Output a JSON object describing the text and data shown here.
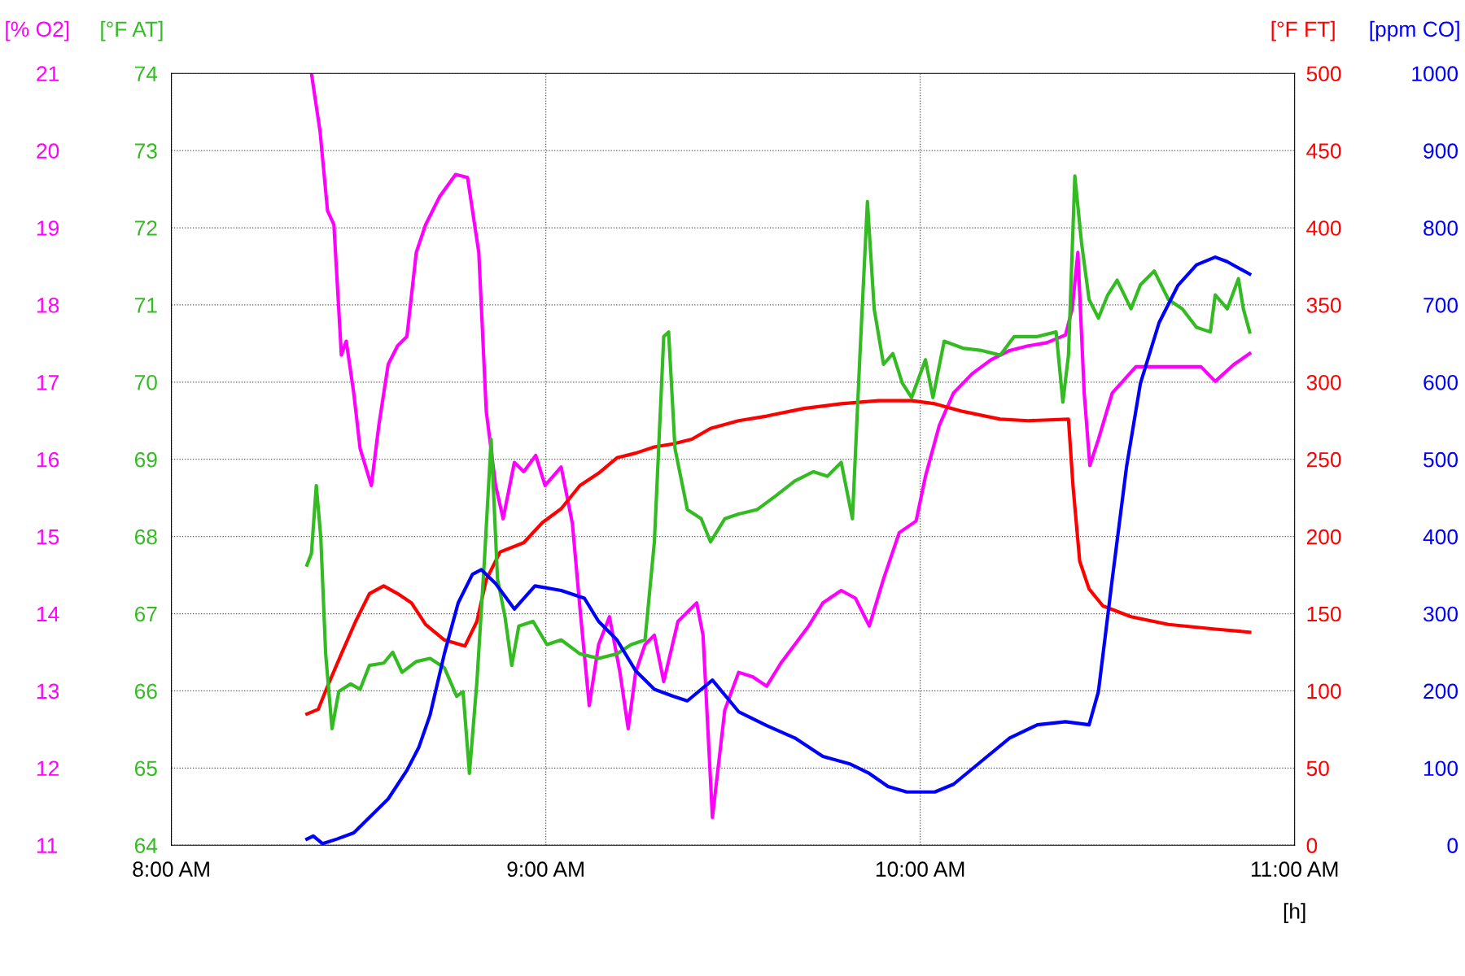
{
  "chart_data": [
    {
      "type": "line",
      "xlabel": "[h]",
      "ylabel": "[% O2]",
      "y2label": "[°F FT]",
      "xlim": [
        8,
        11
      ],
      "xticks": [
        {
          "value": 8,
          "label": "8:00 AM"
        },
        {
          "value": 9,
          "label": "9:00 AM"
        },
        {
          "value": 10,
          "label": "10:00 AM"
        },
        {
          "value": 11,
          "label": "11:00 AM"
        }
      ],
      "ylim": [
        11,
        21
      ],
      "yticks": [
        11,
        12,
        13,
        14,
        15,
        16,
        17,
        18,
        19,
        20,
        21
      ],
      "y2lim": [
        0,
        500
      ],
      "y2ticks": [
        0,
        50,
        100,
        150,
        200,
        250,
        300,
        350,
        400,
        450,
        500
      ],
      "grid": true,
      "line_style": "solid",
      "series": [
        {
          "color": "#ff0000",
          "axis": "y2",
          "x": [
            8.362,
            8.392,
            8.417,
            8.454,
            8.492,
            8.529,
            8.567,
            8.604,
            8.641,
            8.679,
            8.729,
            8.784,
            8.816,
            8.841,
            8.878,
            8.941,
            8.991,
            9.041,
            9.091,
            9.141,
            9.19,
            9.24,
            9.29,
            9.34,
            9.39,
            9.44,
            9.515,
            9.59,
            9.69,
            9.789,
            9.889,
            9.977,
            10.039,
            10.114,
            10.214,
            10.288,
            10.396,
            10.408,
            10.426,
            10.451,
            10.488,
            10.563,
            10.663,
            10.788,
            10.88
          ],
          "values": [
            85,
            88,
            103,
            124,
            145,
            163,
            168,
            163,
            157,
            143,
            133,
            129,
            145,
            172,
            190,
            196,
            209,
            218,
            233,
            241,
            251,
            254,
            258,
            260,
            263,
            270,
            275,
            278,
            283,
            286,
            288,
            288,
            286,
            281,
            276,
            275,
            276,
            233,
            184,
            166,
            155,
            148,
            143,
            140,
            138
          ]
        },
        {
          "color": "#ff00ff",
          "axis": "y",
          "x": [
            8.374,
            8.397,
            8.417,
            8.434,
            8.454,
            8.467,
            8.487,
            8.504,
            8.534,
            8.554,
            8.579,
            8.604,
            8.629,
            8.654,
            8.679,
            8.716,
            8.759,
            8.791,
            8.821,
            8.841,
            8.866,
            8.886,
            8.916,
            8.941,
            8.973,
            8.998,
            9.041,
            9.071,
            9.091,
            9.116,
            9.141,
            9.17,
            9.198,
            9.22,
            9.24,
            9.265,
            9.29,
            9.315,
            9.353,
            9.403,
            9.42,
            9.445,
            9.478,
            9.515,
            9.553,
            9.59,
            9.628,
            9.665,
            9.702,
            9.74,
            9.789,
            9.827,
            9.864,
            9.902,
            9.944,
            9.989,
            10.014,
            10.051,
            10.089,
            10.139,
            10.189,
            10.239,
            10.288,
            10.338,
            10.388,
            10.406,
            10.421,
            10.438,
            10.453,
            10.476,
            10.513,
            10.576,
            10.638,
            10.75,
            10.788,
            10.838,
            10.88
          ],
          "values": [
            21.0,
            20.25,
            19.22,
            19.04,
            17.35,
            17.53,
            16.86,
            16.14,
            15.66,
            16.44,
            17.23,
            17.47,
            17.59,
            18.68,
            19.04,
            19.4,
            19.69,
            19.65,
            18.68,
            16.62,
            15.66,
            15.23,
            15.96,
            15.84,
            16.05,
            15.66,
            15.9,
            15.17,
            14.08,
            12.81,
            13.6,
            13.96,
            13.24,
            12.51,
            13.24,
            13.6,
            13.72,
            13.12,
            13.9,
            14.14,
            13.72,
            11.36,
            12.75,
            13.24,
            13.18,
            13.06,
            13.36,
            13.6,
            13.84,
            14.14,
            14.3,
            14.2,
            13.84,
            14.45,
            15.05,
            15.2,
            15.78,
            16.44,
            16.86,
            17.11,
            17.29,
            17.41,
            17.47,
            17.51,
            17.61,
            17.95,
            18.68,
            16.86,
            15.92,
            16.26,
            16.86,
            17.2,
            17.2,
            17.2,
            17.01,
            17.23,
            17.37
          ]
        }
      ]
    },
    {
      "type": "line",
      "ylabel": "[°F AT]",
      "y2label": "[ppm CO]",
      "tick_labels": "y",
      "xlim": [
        8,
        11
      ],
      "ylim": [
        64,
        74
      ],
      "yticks": [
        64,
        65,
        66,
        67,
        68,
        69,
        70,
        71,
        72,
        73,
        74
      ],
      "y2lim": [
        0,
        1000
      ],
      "y2ticks": [
        0,
        100,
        200,
        300,
        400,
        500,
        600,
        700,
        800,
        900,
        1000
      ],
      "line_style": "solid",
      "series": [
        {
          "color": "#33bb22",
          "axis": "y",
          "x": [
            8.362,
            8.374,
            8.387,
            8.399,
            8.412,
            8.429,
            8.447,
            8.479,
            8.504,
            8.529,
            8.567,
            8.591,
            8.616,
            8.654,
            8.691,
            8.729,
            8.762,
            8.779,
            8.796,
            8.816,
            8.836,
            8.854,
            8.871,
            8.891,
            8.909,
            8.928,
            8.966,
            9.003,
            9.041,
            9.091,
            9.141,
            9.19,
            9.228,
            9.265,
            9.29,
            9.315,
            9.328,
            9.345,
            9.378,
            9.415,
            9.44,
            9.478,
            9.515,
            9.565,
            9.615,
            9.665,
            9.715,
            9.752,
            9.789,
            9.819,
            9.839,
            9.859,
            9.877,
            9.902,
            9.927,
            9.952,
            9.977,
            10.014,
            10.034,
            10.064,
            10.114,
            10.164,
            10.214,
            10.251,
            10.313,
            10.363,
            10.381,
            10.396,
            10.413,
            10.431,
            10.451,
            10.476,
            10.501,
            10.526,
            10.563,
            10.588,
            10.625,
            10.663,
            10.7,
            10.738,
            10.775,
            10.788,
            10.82,
            10.85,
            10.863,
            10.88
          ],
          "values": [
            67.63,
            67.78,
            68.66,
            67.99,
            66.48,
            65.51,
            65.99,
            66.09,
            66.02,
            66.33,
            66.36,
            66.5,
            66.24,
            66.38,
            66.42,
            66.3,
            65.93,
            65.99,
            64.93,
            66.12,
            67.69,
            69.26,
            67.45,
            66.96,
            66.33,
            66.84,
            66.9,
            66.6,
            66.66,
            66.48,
            66.42,
            66.48,
            66.6,
            66.66,
            67.93,
            70.59,
            70.65,
            69.14,
            68.35,
            68.23,
            67.93,
            68.23,
            68.29,
            68.35,
            68.53,
            68.72,
            68.84,
            68.78,
            68.96,
            68.23,
            70.35,
            72.34,
            70.95,
            70.23,
            70.37,
            69.99,
            69.8,
            70.29,
            69.8,
            70.53,
            70.44,
            70.41,
            70.35,
            70.59,
            70.59,
            70.65,
            69.74,
            70.35,
            72.67,
            71.8,
            71.07,
            70.83,
            71.13,
            71.32,
            70.95,
            71.26,
            71.44,
            71.07,
            70.95,
            70.71,
            70.65,
            71.13,
            70.95,
            71.34,
            70.95,
            70.65
          ]
        },
        {
          "color": "#0000ff",
          "axis": "y2",
          "x": [
            8.362,
            8.379,
            8.404,
            8.442,
            8.487,
            8.529,
            8.579,
            8.629,
            8.661,
            8.691,
            8.729,
            8.766,
            8.804,
            8.828,
            8.866,
            8.916,
            8.971,
            9.041,
            9.103,
            9.141,
            9.19,
            9.24,
            9.29,
            9.34,
            9.378,
            9.445,
            9.515,
            9.59,
            9.665,
            9.74,
            9.814,
            9.864,
            9.914,
            9.964,
            10.039,
            10.089,
            10.164,
            10.239,
            10.313,
            10.388,
            10.451,
            10.476,
            10.513,
            10.551,
            10.588,
            10.638,
            10.688,
            10.738,
            10.788,
            10.82,
            10.88
          ],
          "values": [
            8,
            12,
            2,
            8,
            16,
            36,
            60,
            97,
            127,
            169,
            248,
            314,
            351,
            357,
            339,
            306,
            336,
            330,
            320,
            290,
            266,
            226,
            202,
            193,
            187,
            214,
            173,
            155,
            139,
            115,
            105,
            93,
            76,
            69,
            69,
            79,
            109,
            139,
            156,
            160,
            156,
            199,
            345,
            490,
            598,
            677,
            725,
            752,
            762,
            756,
            740
          ]
        }
      ]
    }
  ]
}
